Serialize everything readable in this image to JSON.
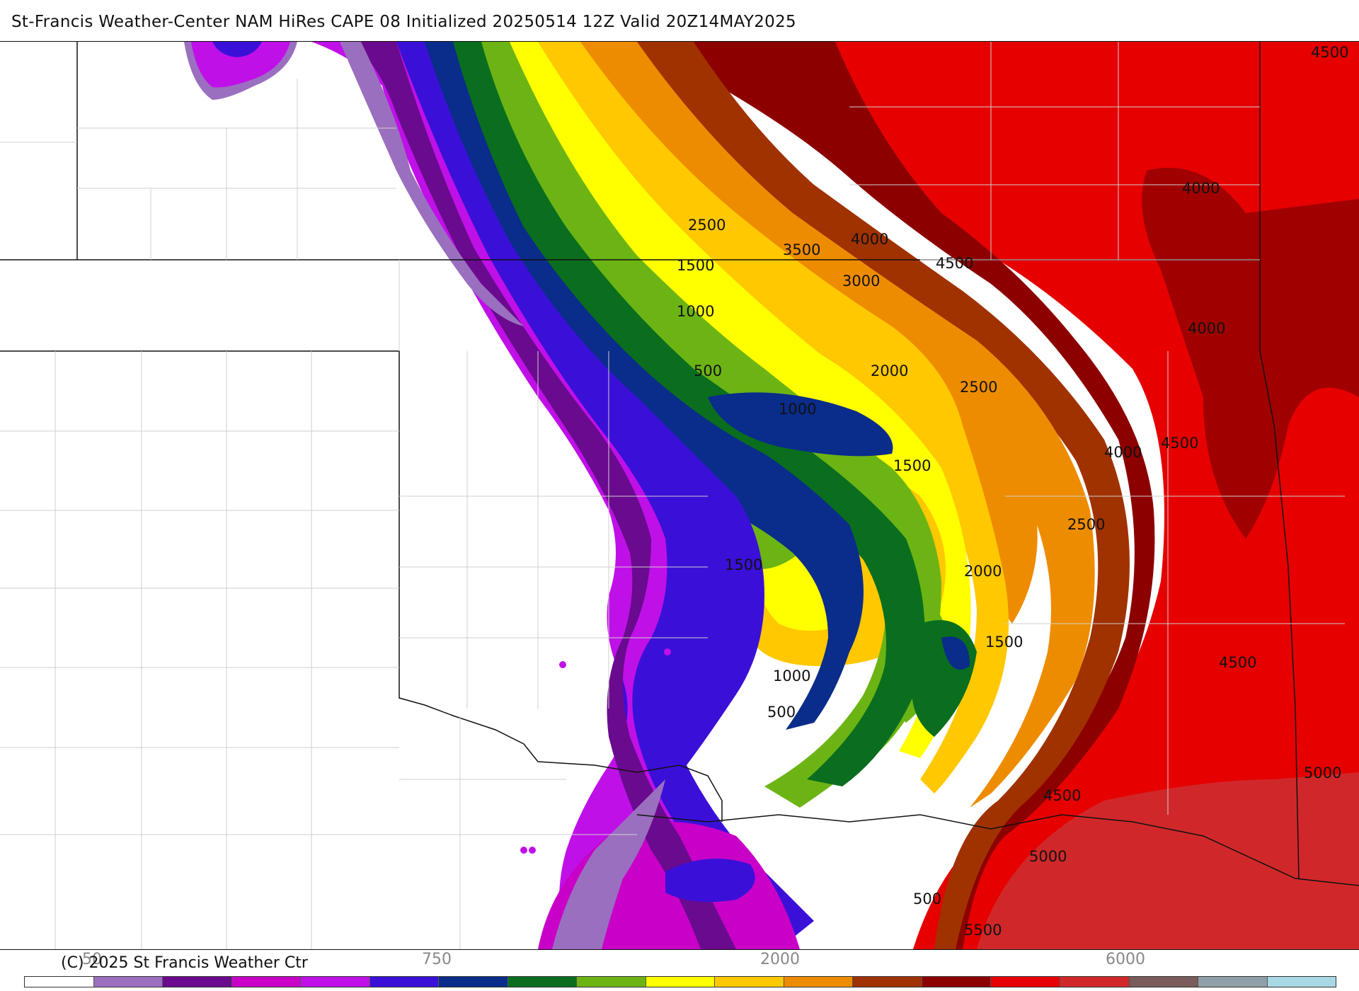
{
  "header": {
    "title": "St-Francis Weather-Center NAM HiRes CAPE  08 Initialized 20250514 12Z Valid 20Z14MAY2025"
  },
  "map": {
    "contour_labels": [
      "4500",
      "4000",
      "2500",
      "3500",
      "4000",
      "4500",
      "1500",
      "3000",
      "1000",
      "4000",
      "500",
      "2000",
      "2500",
      "1000",
      "4000",
      "4500",
      "1500",
      "2500",
      "1500",
      "2000",
      "1500",
      "4500",
      "1000",
      "500",
      "5000",
      "4500",
      "5000",
      "500",
      "5500"
    ]
  },
  "footer": {
    "copyright": "(C) 2025 St Francis Weather Ctr",
    "colorbar_ticks": [
      "50",
      "750",
      "2000",
      "6000"
    ],
    "colorbar_colors": [
      "#ffffff",
      "#9b6fbf",
      "#6a0a8e",
      "#c800c8",
      "#c010e8",
      "#3a10d8",
      "#0a2c8a",
      "#0a6e1e",
      "#6cb414",
      "#ffff00",
      "#ffc800",
      "#ee8c00",
      "#a03200",
      "#8c0000",
      "#e60000",
      "#d0282a",
      "#7a5c5c",
      "#8fa0a8",
      "#a8d8e4"
    ]
  }
}
